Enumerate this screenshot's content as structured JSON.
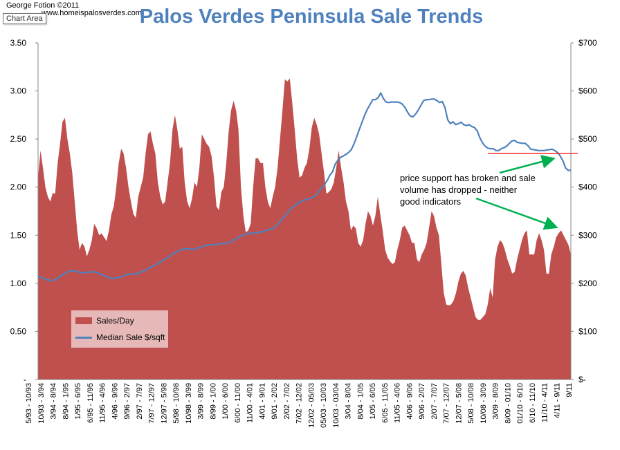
{
  "header": {
    "credit_line1": "George Fotion ©2011",
    "credit_line2": "www.homeispalosverdes.com",
    "chart_area_tooltip": "Chart Area"
  },
  "chart_data": {
    "type": "area",
    "title": "Palos Verdes Peninsula Sale Trends",
    "y_left": {
      "ticks": [
        "3.50",
        "3.00",
        "2.50",
        "2.00",
        "1.50",
        "1.00",
        "0.50",
        "-"
      ],
      "lim": [
        0,
        3.5
      ]
    },
    "y_right": {
      "ticks": [
        "$700",
        "$600",
        "$500",
        "$400",
        "$300",
        "$200",
        "$100",
        "$-"
      ],
      "lim": [
        0,
        700
      ]
    },
    "x_tick_labels": [
      "5/93 - 10/93",
      "10/93 - 3/94",
      "3/94 - 8/94",
      "8/94 - 1/95",
      "1/95 - 6/95",
      "6/95 - 11/95",
      "11/95 - 4/96",
      "4/96 - 9/96",
      "9/96 - 2/97",
      "2/97 - 7/97",
      "7/97 - 12/97",
      "12/97 - 5/98",
      "5/98 - 10/98",
      "10/98 - 3/99",
      "3/99 - 8/99",
      "8/99 - 1/00",
      "1/00 - 6/00",
      "6/00 - 11/00",
      "11/00 - 4/01",
      "4/01 - 9/01",
      "9/01 - 2/02",
      "2/02 - 7/02",
      "7/02 - 12/02",
      "12/02 - 05/03",
      "05/03 - 10/03",
      "10/03 - 03/04",
      "3/04 - 8/04",
      "8/04 - 1/05",
      "1/05 - 6/05",
      "6/05 - 11/05",
      "11/05 - 4/06",
      "4/06 - 9/06",
      "9/06 - 2/07",
      "2/07 - 7/07",
      "7/07 - 12/07",
      "12/07 - 5/08",
      "5/08 - 10/08",
      "10/08 - 3/09",
      "3/09 - 8/09",
      "8/09 - 01/10",
      "01/10 - 6/10",
      "6/10 - 11/10",
      "11/10 - 4/11",
      "4/11 - 9/11",
      "9/11"
    ],
    "series": [
      {
        "name": "Sales/Day",
        "type": "area",
        "axis": "left",
        "color": "#c0504d",
        "values": [
          2.1,
          2.38,
          2.2,
          2.0,
          1.9,
          1.85,
          1.94,
          1.93,
          2.25,
          2.45,
          2.68,
          2.72,
          2.5,
          2.35,
          2.15,
          1.85,
          1.55,
          1.35,
          1.42,
          1.38,
          1.28,
          1.35,
          1.45,
          1.62,
          1.57,
          1.5,
          1.52,
          1.48,
          1.44,
          1.55,
          1.72,
          1.8,
          2.0,
          2.25,
          2.4,
          2.35,
          2.2,
          2.0,
          1.85,
          1.72,
          1.68,
          1.9,
          2.0,
          2.1,
          2.35,
          2.55,
          2.58,
          2.45,
          2.35,
          2.05,
          1.9,
          1.82,
          1.85,
          2.05,
          2.25,
          2.6,
          2.75,
          2.6,
          2.4,
          2.42,
          2.05,
          1.85,
          1.78,
          1.88,
          2.05,
          2.0,
          2.2,
          2.55,
          2.5,
          2.45,
          2.42,
          2.32,
          2.1,
          1.8,
          1.76,
          1.95,
          2.0,
          2.25,
          2.58,
          2.8,
          2.9,
          2.8,
          2.6,
          2.0,
          1.7,
          1.53,
          1.55,
          1.62,
          2.0,
          2.3,
          2.3,
          2.25,
          2.25,
          2.0,
          1.85,
          1.78,
          1.9,
          2.0,
          2.2,
          2.5,
          2.8,
          3.12,
          3.1,
          3.13,
          2.88,
          2.6,
          2.3,
          2.1,
          2.12,
          2.2,
          2.25,
          2.4,
          2.62,
          2.72,
          2.65,
          2.55,
          2.35,
          2.15,
          1.93,
          1.95,
          1.98,
          2.05,
          2.2,
          2.38,
          2.2,
          2.05,
          1.85,
          1.75,
          1.55,
          1.6,
          1.57,
          1.42,
          1.38,
          1.45,
          1.62,
          1.75,
          1.7,
          1.6,
          1.7,
          1.9,
          1.72,
          1.55,
          1.35,
          1.27,
          1.23,
          1.2,
          1.22,
          1.35,
          1.45,
          1.58,
          1.6,
          1.55,
          1.5,
          1.42,
          1.42,
          1.25,
          1.22,
          1.3,
          1.35,
          1.42,
          1.58,
          1.75,
          1.7,
          1.58,
          1.5,
          1.2,
          0.9,
          0.78,
          0.77,
          0.78,
          0.82,
          0.9,
          1.02,
          1.1,
          1.13,
          1.08,
          0.95,
          0.85,
          0.75,
          0.65,
          0.62,
          0.62,
          0.65,
          0.68,
          0.78,
          0.95,
          0.85,
          1.25,
          1.38,
          1.45,
          1.42,
          1.35,
          1.25,
          1.18,
          1.1,
          1.12,
          1.25,
          1.35,
          1.45,
          1.52,
          1.55,
          1.3,
          1.3,
          1.3,
          1.45,
          1.52,
          1.45,
          1.35,
          1.1,
          1.1,
          1.3,
          1.38,
          1.48,
          1.52,
          1.55,
          1.5,
          1.45,
          1.4,
          1.3
        ]
      },
      {
        "name": "Median Sale $/sqft",
        "type": "line",
        "axis": "right",
        "color": "#4f81bd",
        "values": [
          214,
          213,
          210,
          208,
          207,
          205,
          207,
          210,
          214,
          217,
          220,
          224,
          226,
          226,
          225,
          224,
          222,
          222,
          223,
          223,
          224,
          224,
          222,
          220,
          218,
          215,
          213,
          211,
          210,
          211,
          212,
          213,
          216,
          218,
          219,
          219,
          219,
          220,
          222,
          225,
          227,
          230,
          233,
          236,
          238,
          242,
          245,
          249,
          252,
          256,
          260,
          263,
          266,
          269,
          271,
          272,
          272,
          271,
          270,
          272,
          274,
          276,
          278,
          279,
          280,
          280,
          280,
          281,
          282,
          283,
          283,
          284,
          286,
          290,
          293,
          296,
          299,
          301,
          303,
          304,
          304,
          305,
          305,
          307,
          307,
          310,
          311,
          313,
          315,
          320,
          326,
          333,
          339,
          345,
          352,
          358,
          362,
          366,
          370,
          372,
          374,
          376,
          377,
          380,
          385,
          392,
          398,
          405,
          414,
          425,
          432,
          448,
          456,
          462,
          465,
          468,
          472,
          478,
          490,
          505,
          520,
          535,
          550,
          562,
          572,
          582,
          582,
          586,
          596,
          584,
          577,
          576,
          577,
          577,
          577,
          576,
          573,
          566,
          556,
          548,
          546,
          552,
          560,
          570,
          580,
          582,
          582,
          583,
          583,
          580,
          576,
          578,
          565,
          540,
          532,
          536,
          530,
          532,
          535,
          530,
          528,
          530,
          526,
          524,
          517,
          503,
          492,
          485,
          481,
          480,
          480,
          476,
          476,
          480,
          482,
          485,
          491,
          496,
          497,
          493,
          492,
          491,
          491,
          486,
          479,
          478,
          477,
          476,
          476,
          476,
          477,
          478,
          479,
          476,
          472,
          465,
          455,
          440,
          435,
          435
        ]
      }
    ],
    "reference_line": {
      "axis": "right",
      "value": 470,
      "color": "#ff0000"
    },
    "legend_position": "bottom-left inside plot",
    "gridlines": false,
    "annotation": {
      "text_lines": [
        "price support has broken and sale",
        "volume has dropped  -  neither",
        "good indicators"
      ],
      "arrow_color": "#00b050"
    }
  }
}
